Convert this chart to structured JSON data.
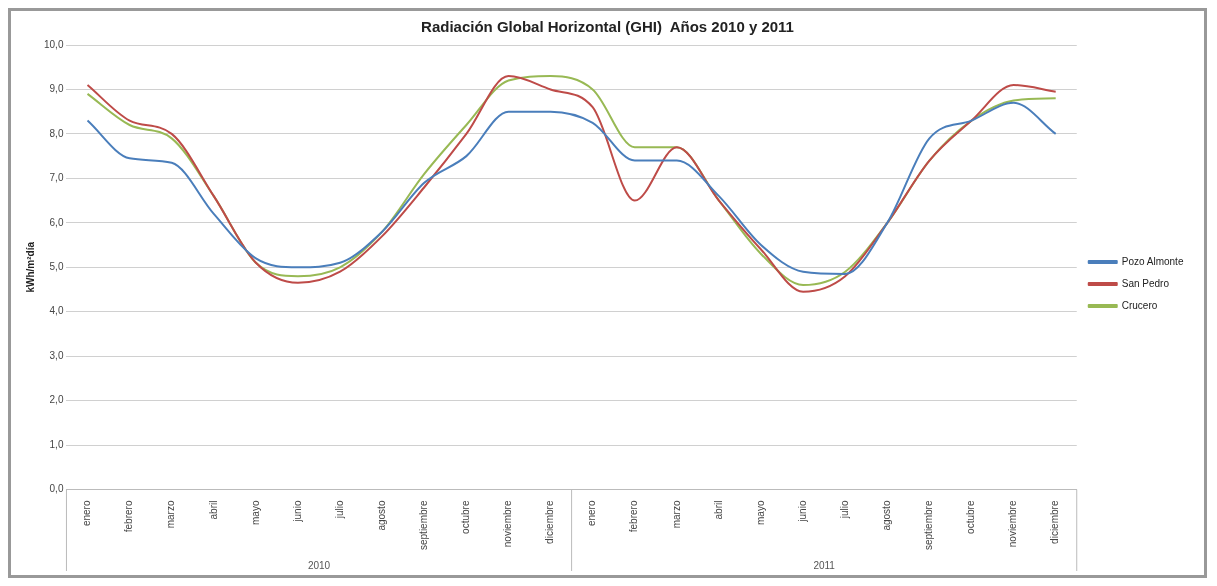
{
  "chart_data": {
    "type": "line",
    "title": "Radiación Global Horizontal (GHI)  Años 2010 y 2011",
    "ylabel": "kWh/m²día",
    "categories": [
      "enero",
      "febrero",
      "marzo",
      "abril",
      "mayo",
      "junio",
      "julio",
      "agosto",
      "septiembre",
      "octubre",
      "noviembre",
      "diciembre",
      "enero",
      "febrero",
      "marzo",
      "abril",
      "mayo",
      "junio",
      "julio",
      "agosto",
      "septiembre",
      "octubre",
      "noviembre",
      "diciembre"
    ],
    "series": [
      {
        "name": "Pozo Almonte",
        "color": "#4a7ebb",
        "values": [
          8.3,
          7.45,
          7.35,
          6.2,
          5.2,
          5.0,
          5.1,
          5.8,
          6.9,
          7.5,
          8.5,
          8.5,
          8.25,
          7.4,
          7.4,
          6.6,
          5.5,
          4.9,
          4.85,
          6.0,
          7.9,
          8.3,
          8.7,
          8.0
        ]
      },
      {
        "name": "San Pedro",
        "color": "#be4b48",
        "values": [
          9.1,
          8.3,
          8.0,
          6.6,
          5.1,
          4.65,
          4.9,
          5.7,
          6.8,
          8.0,
          9.3,
          9.0,
          8.6,
          6.5,
          7.7,
          6.5,
          5.4,
          4.45,
          4.8,
          6.0,
          7.4,
          8.3,
          9.1,
          8.95
        ]
      },
      {
        "name": "Crucero",
        "color": "#98b954",
        "values": [
          8.9,
          8.2,
          7.9,
          6.6,
          5.1,
          4.8,
          5.0,
          5.8,
          7.1,
          8.2,
          9.2,
          9.3,
          9.0,
          7.7,
          7.7,
          6.5,
          5.3,
          4.6,
          4.9,
          6.0,
          7.4,
          8.3,
          8.75,
          8.8
        ]
      }
    ],
    "ylim": [
      0,
      10
    ],
    "yticks": [
      {
        "value": 0,
        "label": "0,0"
      },
      {
        "value": 1,
        "label": "1,0"
      },
      {
        "value": 2,
        "label": "2,0"
      },
      {
        "value": 3,
        "label": "3,0"
      },
      {
        "value": 4,
        "label": "4,0"
      },
      {
        "value": 5,
        "label": "5,0"
      },
      {
        "value": 6,
        "label": "6,0"
      },
      {
        "value": 7,
        "label": "7,0"
      },
      {
        "value": 8,
        "label": "8,0"
      },
      {
        "value": 9,
        "label": "9,0"
      },
      {
        "value": 10,
        "label": "10,0"
      }
    ],
    "annotations": [
      "2010",
      "2011"
    ],
    "grid": "y",
    "legend": "right",
    "marker": "none",
    "line_style": "solid"
  }
}
